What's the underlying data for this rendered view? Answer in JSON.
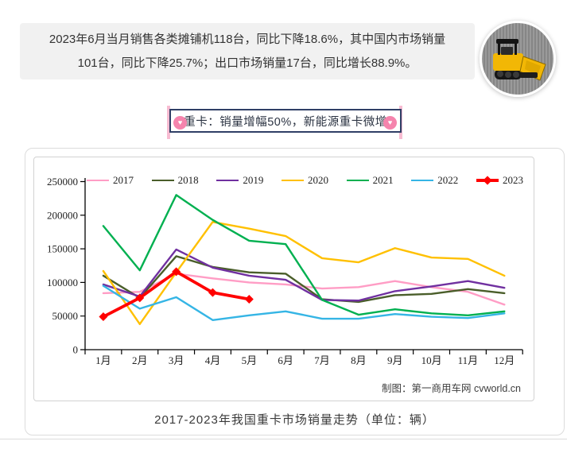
{
  "summary": {
    "line1": "2023年6月当月销售各类摊铺机118台，同比下降18.6%，其中国内市场销量",
    "line2": "101台，同比下降25.7%；出口市场销量17台，同比增长88.9%。"
  },
  "photo": {
    "alt": "黄色摊铺机"
  },
  "badge": {
    "text": "重卡：销量增幅50%，新能源重卡微增"
  },
  "chart_data": {
    "type": "line",
    "title": "2017-2023年我国重卡市场销量走势（单位：辆）",
    "credit": "制图：第一商用车网  cvworld.cn",
    "categories": [
      "1月",
      "2月",
      "3月",
      "4月",
      "5月",
      "6月",
      "7月",
      "8月",
      "9月",
      "10月",
      "11月",
      "12月"
    ],
    "y_ticks": [
      0,
      50000,
      100000,
      150000,
      200000,
      250000
    ],
    "ylim": [
      0,
      250000
    ],
    "grid": false,
    "legend_position": "top",
    "series": [
      {
        "name": "2017",
        "color": "#FF9DC5",
        "values": [
          84000,
          86000,
          113000,
          106000,
          100000,
          97000,
          91000,
          93000,
          102000,
          93000,
          86000,
          67000
        ]
      },
      {
        "name": "2018",
        "color": "#4A5E2A",
        "values": [
          110000,
          77000,
          139000,
          123000,
          115000,
          113000,
          75000,
          71000,
          81000,
          83000,
          90000,
          84000
        ]
      },
      {
        "name": "2019",
        "color": "#7030A0",
        "values": [
          97000,
          79000,
          149000,
          122000,
          110000,
          104000,
          74000,
          73000,
          87000,
          94000,
          102000,
          92000
        ]
      },
      {
        "name": "2020",
        "color": "#FFC000",
        "values": [
          117000,
          38000,
          115000,
          190000,
          180000,
          169000,
          136000,
          130000,
          151000,
          137000,
          135000,
          110000
        ]
      },
      {
        "name": "2021",
        "color": "#00B050",
        "values": [
          184000,
          118000,
          230000,
          193000,
          162000,
          157000,
          74000,
          52000,
          60000,
          54000,
          51000,
          57000
        ]
      },
      {
        "name": "2022",
        "color": "#35B5E5",
        "values": [
          95000,
          61000,
          78000,
          44000,
          51000,
          57000,
          46000,
          46000,
          53000,
          49000,
          47000,
          54000
        ]
      },
      {
        "name": "2023",
        "color": "#FF0000",
        "marker": "diamond",
        "values": [
          49000,
          77000,
          116000,
          85000,
          75000,
          null,
          null,
          null,
          null,
          null,
          null,
          null
        ]
      }
    ]
  }
}
